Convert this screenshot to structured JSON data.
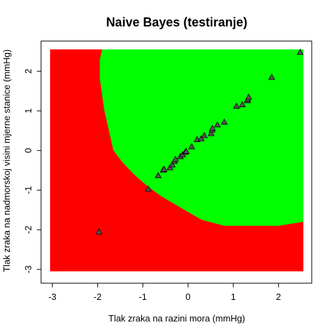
{
  "chart_data": {
    "type": "scatter",
    "title": "Naive Bayes (testiranje)",
    "xlabel": "Tlak zraka na razini mora (mmHg)",
    "ylabel": "Tlak zraka na nadmorskoj visini mjerne stanice (mmHg)",
    "xlim": [
      -3.05,
      2.55
    ],
    "ylim": [
      -3.05,
      2.55
    ],
    "x_ticks": [
      -3,
      -2,
      -1,
      0,
      1,
      2
    ],
    "y_ticks": [
      -3,
      -2,
      -1,
      0,
      1,
      2
    ],
    "grid": false,
    "legend": "none",
    "colors": {
      "region_outer": "#ff0000",
      "region_inner": "#00ff00",
      "point_fill": "#555555",
      "point_stroke": "#000000"
    },
    "decision_boundary": {
      "left_x_at_top": -1.9,
      "left_edge": [
        [
          -1.9,
          2.55
        ],
        [
          -1.95,
          2.3
        ],
        [
          -1.95,
          1.8
        ],
        [
          -1.85,
          1.0
        ],
        [
          -1.75,
          0.5
        ],
        [
          -1.65,
          0.0
        ],
        [
          -1.45,
          -0.3
        ],
        [
          -1.2,
          -0.6
        ],
        [
          -0.9,
          -0.9
        ],
        [
          -0.6,
          -1.15
        ],
        [
          -0.3,
          -1.35
        ],
        [
          0.0,
          -1.55
        ],
        [
          0.3,
          -1.75
        ],
        [
          0.8,
          -1.9
        ],
        [
          2.0,
          -1.9
        ],
        [
          2.55,
          -1.8
        ]
      ],
      "bottom_y_at_right": -1.8
    },
    "series": [
      {
        "marker": "triangle",
        "points": [
          [
            -1.97,
            -2.05
          ],
          [
            -0.88,
            -0.97
          ],
          [
            -0.66,
            -0.63
          ],
          [
            -0.55,
            -0.49
          ],
          [
            -0.53,
            -0.47
          ],
          [
            -0.4,
            -0.43
          ],
          [
            -0.35,
            -0.36
          ],
          [
            -0.3,
            -0.27
          ],
          [
            -0.28,
            -0.22
          ],
          [
            -0.17,
            -0.15
          ],
          [
            -0.12,
            -0.1
          ],
          [
            -0.06,
            -0.04
          ],
          [
            -0.04,
            -0.02
          ],
          [
            0.08,
            0.1
          ],
          [
            0.2,
            0.28
          ],
          [
            0.29,
            0.3
          ],
          [
            0.36,
            0.38
          ],
          [
            0.51,
            0.43
          ],
          [
            0.53,
            0.52
          ],
          [
            0.54,
            0.56
          ],
          [
            0.65,
            0.65
          ],
          [
            0.8,
            0.72
          ],
          [
            1.07,
            1.12
          ],
          [
            1.2,
            1.16
          ],
          [
            1.31,
            1.26
          ],
          [
            1.32,
            1.3
          ],
          [
            1.34,
            1.35
          ],
          [
            1.85,
            1.85
          ],
          [
            2.48,
            2.48
          ]
        ]
      }
    ]
  }
}
